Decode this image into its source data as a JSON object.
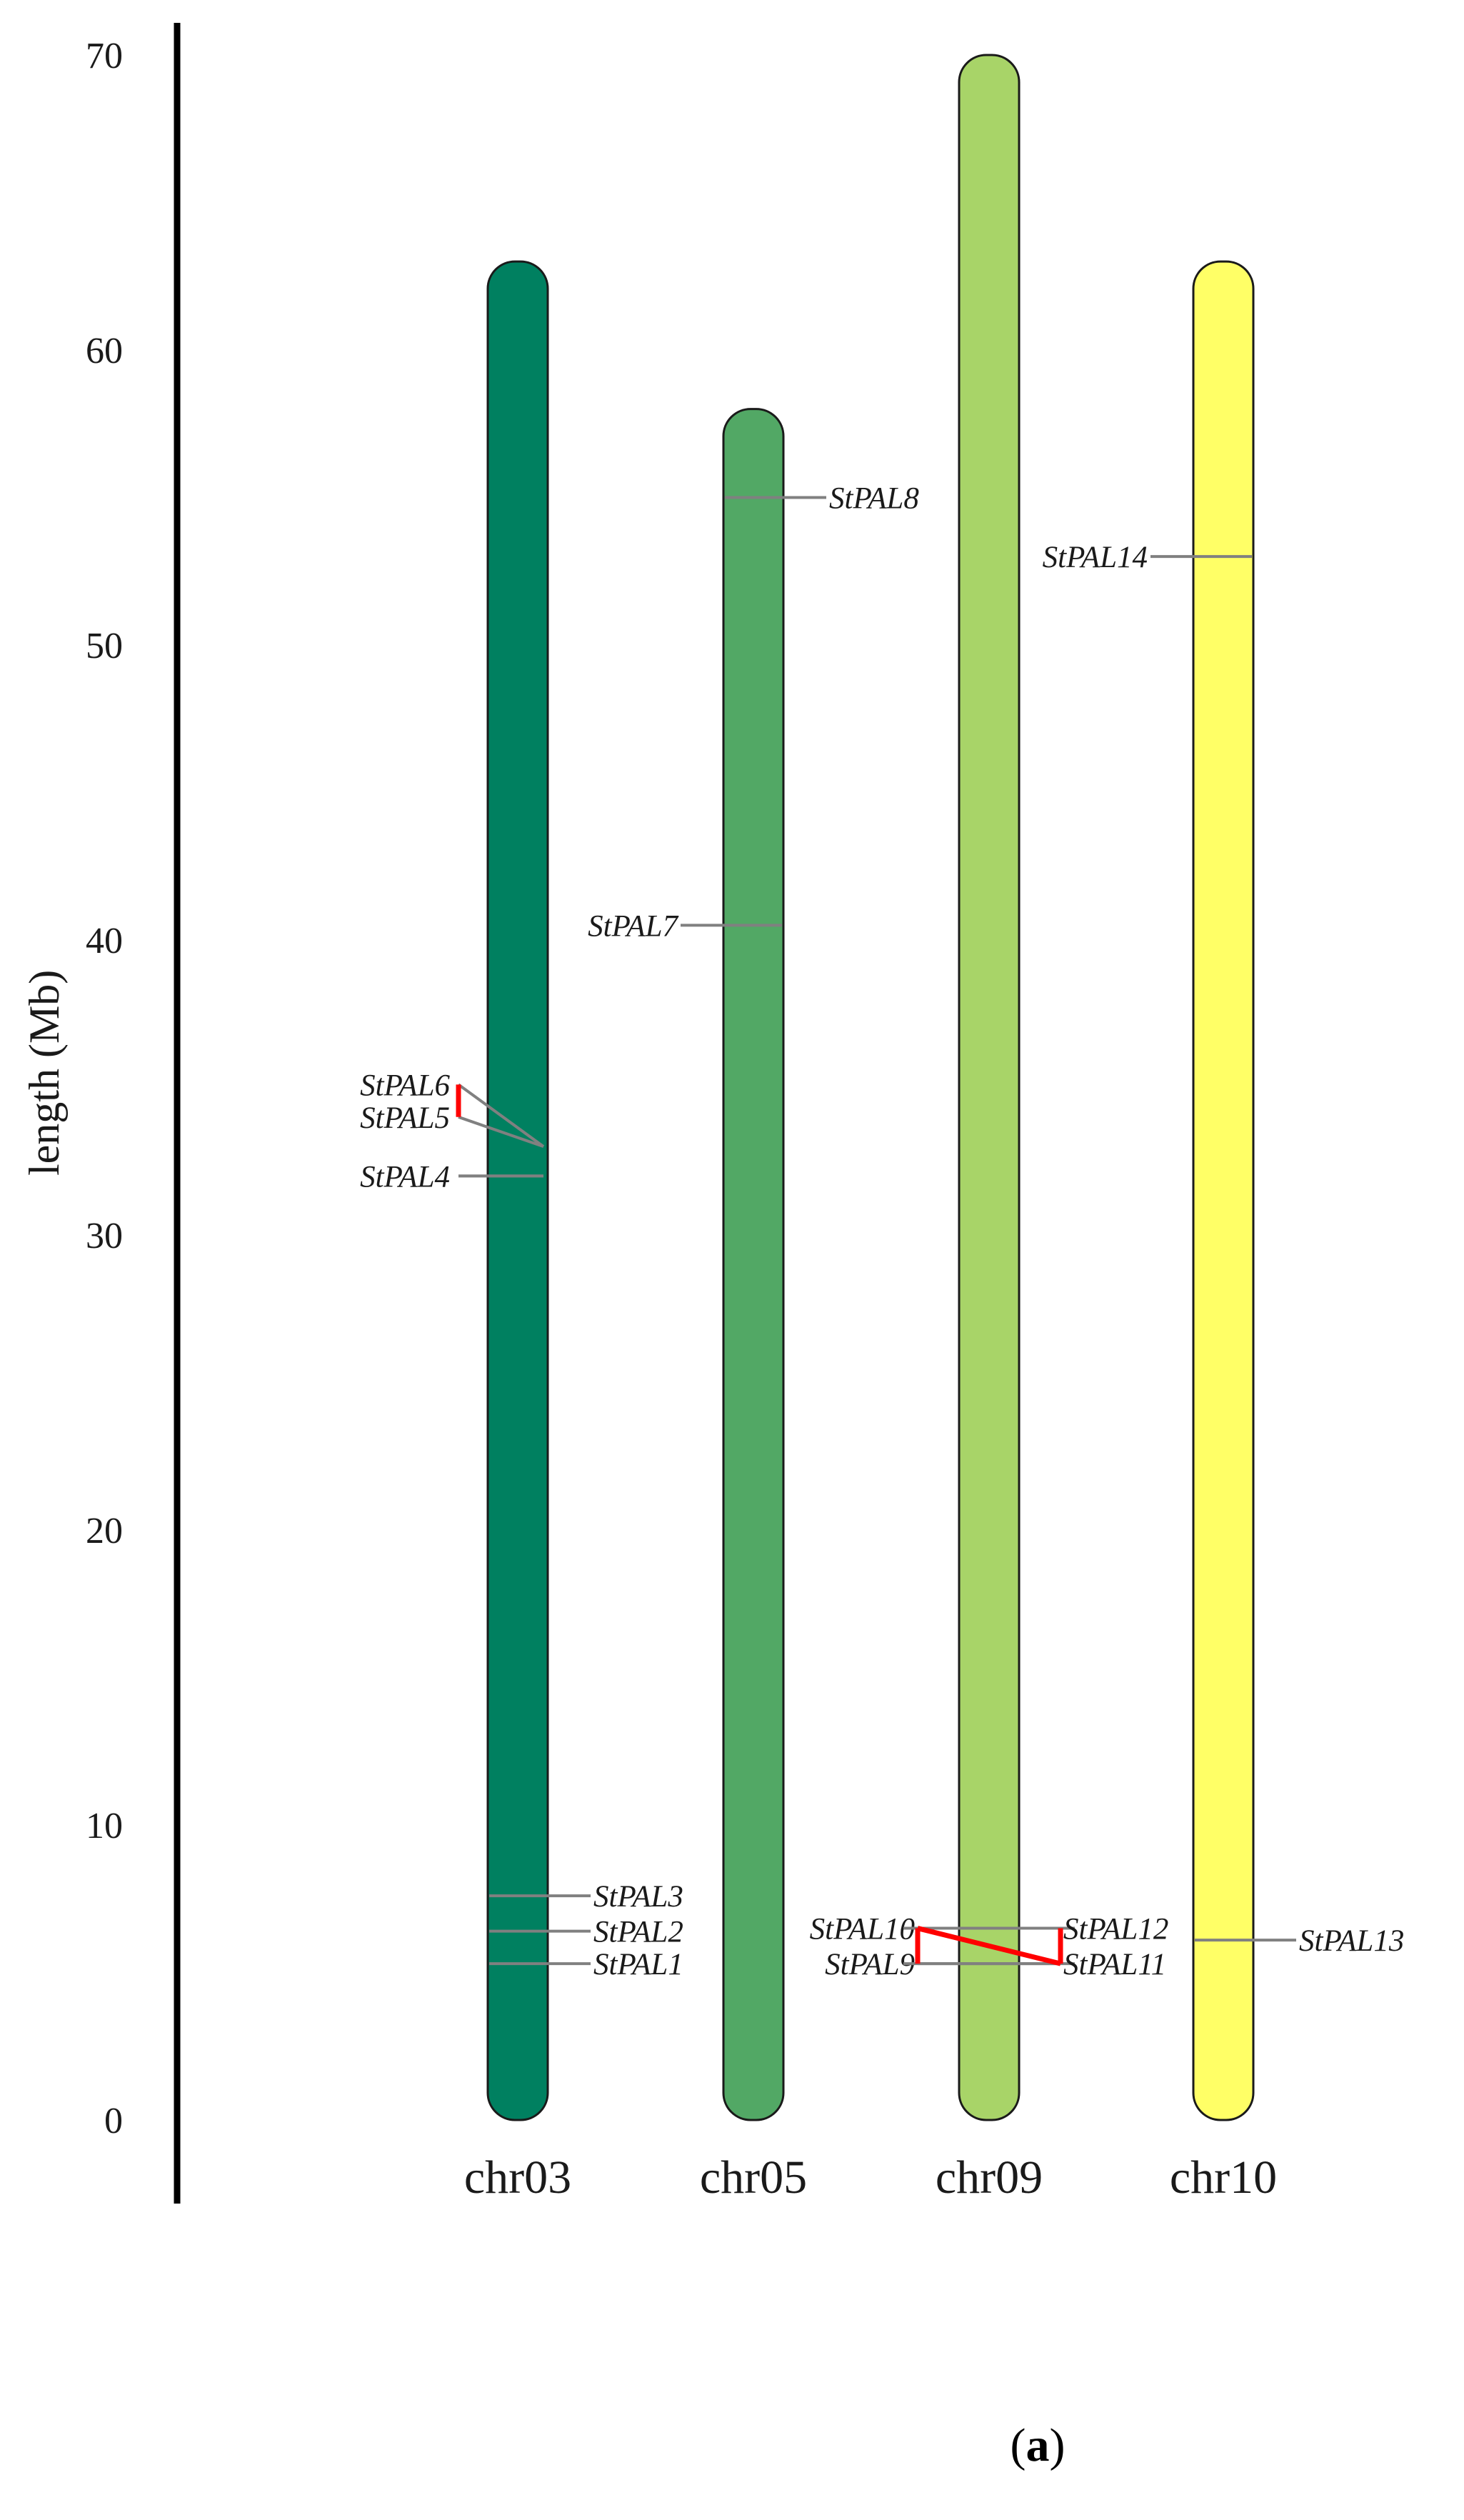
{
  "axis": {
    "title": "length (Mb)",
    "ticks": [
      0,
      10,
      20,
      30,
      40,
      50,
      60,
      70
    ],
    "range": [
      0,
      70
    ]
  },
  "chromosomes": [
    {
      "name": "chr03",
      "length": 63,
      "color": "#008060"
    },
    {
      "name": "chr05",
      "length": 58,
      "color": "#52a865"
    },
    {
      "name": "chr09",
      "length": 70,
      "color": "#a8d468"
    },
    {
      "name": "chr10",
      "length": 63,
      "color": "#ffff66"
    }
  ],
  "genes": [
    {
      "name": "StPAL1",
      "chr": "chr03",
      "pos": 5.3,
      "side": "right"
    },
    {
      "name": "StPAL2",
      "chr": "chr03",
      "pos": 6.4,
      "side": "right"
    },
    {
      "name": "StPAL3",
      "chr": "chr03",
      "pos": 7.6,
      "side": "right"
    },
    {
      "name": "StPAL4",
      "chr": "chr03",
      "pos": 32.0,
      "side": "left"
    },
    {
      "name": "StPAL5",
      "chr": "chr03",
      "pos": 34.0,
      "side": "left"
    },
    {
      "name": "StPAL6",
      "chr": "chr03",
      "pos": 35.1,
      "side": "left"
    },
    {
      "name": "StPAL7",
      "chr": "chr05",
      "pos": 40.5,
      "side": "left"
    },
    {
      "name": "StPAL8",
      "chr": "chr05",
      "pos": 55.0,
      "side": "right"
    },
    {
      "name": "StPAL9",
      "chr": "chr09",
      "pos": 5.3,
      "side": "left"
    },
    {
      "name": "StPAL10",
      "chr": "chr09",
      "pos": 6.5,
      "side": "left"
    },
    {
      "name": "StPAL11",
      "chr": "chr09",
      "pos": 5.3,
      "side": "right"
    },
    {
      "name": "StPAL12",
      "chr": "chr09",
      "pos": 6.5,
      "side": "right"
    },
    {
      "name": "StPAL13",
      "chr": "chr10",
      "pos": 6.1,
      "side": "right"
    },
    {
      "name": "StPAL14",
      "chr": "chr10",
      "pos": 53.0,
      "side": "left"
    }
  ],
  "tandem_pairs": [
    [
      "StPAL5",
      "StPAL6"
    ],
    [
      "StPAL9",
      "StPAL10"
    ],
    [
      "StPAL11",
      "StPAL12"
    ],
    [
      "StPAL10",
      "StPAL11"
    ]
  ],
  "colors": {
    "connector": "#808080",
    "tandem": "#ff0000",
    "axis": "#000000",
    "outline": "#1a1a1a"
  },
  "panel_label": {
    "open": "(",
    "letter": "a",
    "close": ")"
  }
}
